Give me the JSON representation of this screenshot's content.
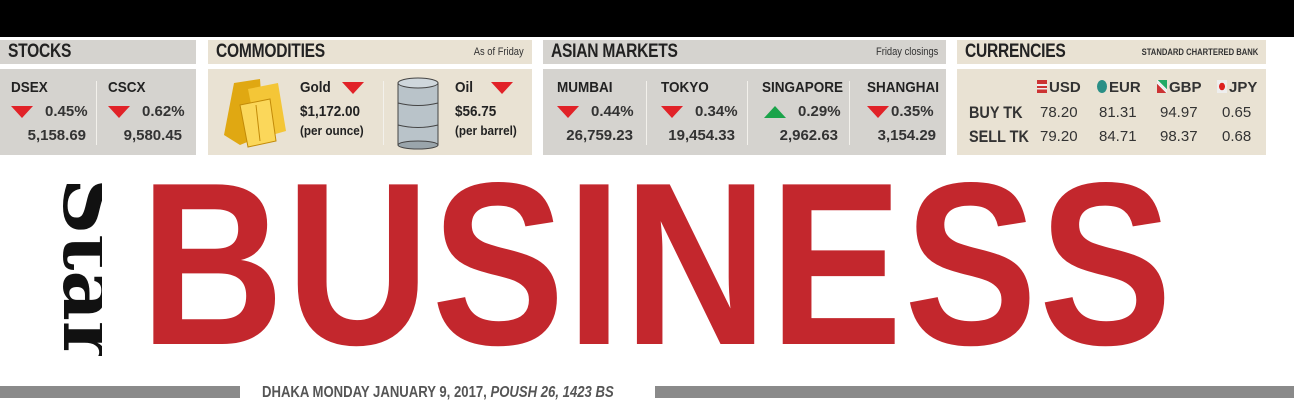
{
  "stocks": {
    "title": "STOCKS",
    "items": [
      {
        "name": "DSEX",
        "direction": "down",
        "change": "0.45%",
        "value": "5,158.69"
      },
      {
        "name": "CSCX",
        "direction": "down",
        "change": "0.62%",
        "value": "9,580.45"
      }
    ]
  },
  "commodities": {
    "title": "COMMODITIES",
    "note": "As of Friday",
    "items": [
      {
        "name": "Gold",
        "direction": "down",
        "price": "$1,172.00",
        "unit": "(per ounce)",
        "icon": "gold-bars-icon"
      },
      {
        "name": "Oil",
        "direction": "down",
        "price": "$56.75",
        "unit": "(per barrel)",
        "icon": "oil-barrel-icon"
      }
    ]
  },
  "asian": {
    "title": "ASIAN MARKETS",
    "note": "Friday closings",
    "items": [
      {
        "name": "MUMBAI",
        "direction": "down",
        "change": "0.44%",
        "value": "26,759.23"
      },
      {
        "name": "TOKYO",
        "direction": "down",
        "change": "0.34%",
        "value": "19,454.33"
      },
      {
        "name": "SINGAPORE",
        "direction": "up",
        "change": "0.29%",
        "value": "2,962.63"
      },
      {
        "name": "SHANGHAI",
        "direction": "down",
        "change": "0.35%",
        "value": "3,154.29"
      }
    ]
  },
  "currencies": {
    "title": "CURRENCIES",
    "note": "STANDARD CHARTERED BANK",
    "columns": [
      "USD",
      "EUR",
      "GBP",
      "JPY"
    ],
    "rows": [
      {
        "label": "BUY TK",
        "values": [
          "78.20",
          "81.31",
          "94.97",
          "0.65"
        ]
      },
      {
        "label": "SELL TK",
        "values": [
          "79.20",
          "84.71",
          "98.37",
          "0.68"
        ]
      }
    ]
  },
  "masthead": {
    "logo": "Star",
    "title": "BUSINESS",
    "date": "DHAKA MONDAY JANUARY 9, 2017, ",
    "date_italic": "POUSH 26, 1423 BS"
  },
  "colors": {
    "brand_red": "#c3272d",
    "down": "#e12228",
    "up": "#1aa34a"
  }
}
